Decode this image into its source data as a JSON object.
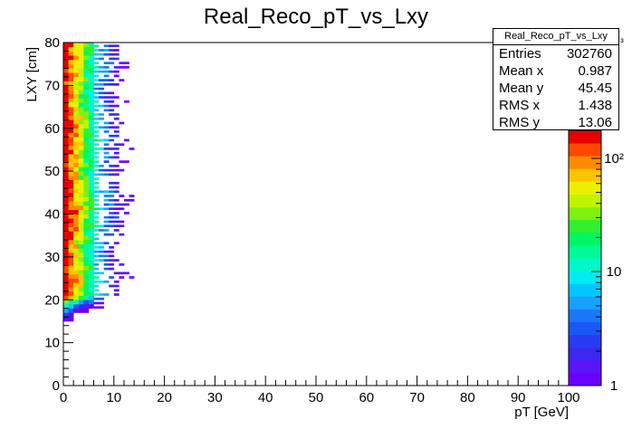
{
  "chart_data": {
    "type": "heatmap",
    "title": "Real_Reco_pT_vs_Lxy",
    "xlabel": "p_T [GeV]",
    "ylabel": "L_XY [cm]",
    "xlim": [
      0,
      100
    ],
    "ylim": [
      0,
      80
    ],
    "x_ticks": [
      "0",
      "10",
      "20",
      "30",
      "40",
      "50",
      "60",
      "70",
      "80",
      "90",
      "100"
    ],
    "y_ticks": [
      "0",
      "10",
      "20",
      "30",
      "40",
      "50",
      "60",
      "70",
      "80"
    ],
    "z_scale": "log",
    "z_ticks": [
      "1",
      "10",
      "10²",
      "10³"
    ],
    "z_range": [
      1,
      1000
    ],
    "palette": [
      "#6a00ff",
      "#5a14f5",
      "#3c28ef",
      "#2a3cf2",
      "#1a58f5",
      "#1a78f8",
      "#19a0ff",
      "#00c8ff",
      "#00ecf0",
      "#00f8c8",
      "#00fa96",
      "#00f664",
      "#30f030",
      "#80f010",
      "#bff400",
      "#ecf000",
      "#ffc400",
      "#ff8c00",
      "#ff4800",
      "#e60000"
    ],
    "stats_box": {
      "name": "Real_Reco_pT_vs_Lxy",
      "rows": [
        {
          "label": "Entries",
          "value": "302760"
        },
        {
          "label": "Mean x",
          "value": "0.987"
        },
        {
          "label": "Mean y",
          "value": "45.45"
        },
        {
          "label": "RMS x",
          "value": "1.438"
        },
        {
          "label": "RMS y",
          "value": "13.06"
        }
      ]
    }
  }
}
